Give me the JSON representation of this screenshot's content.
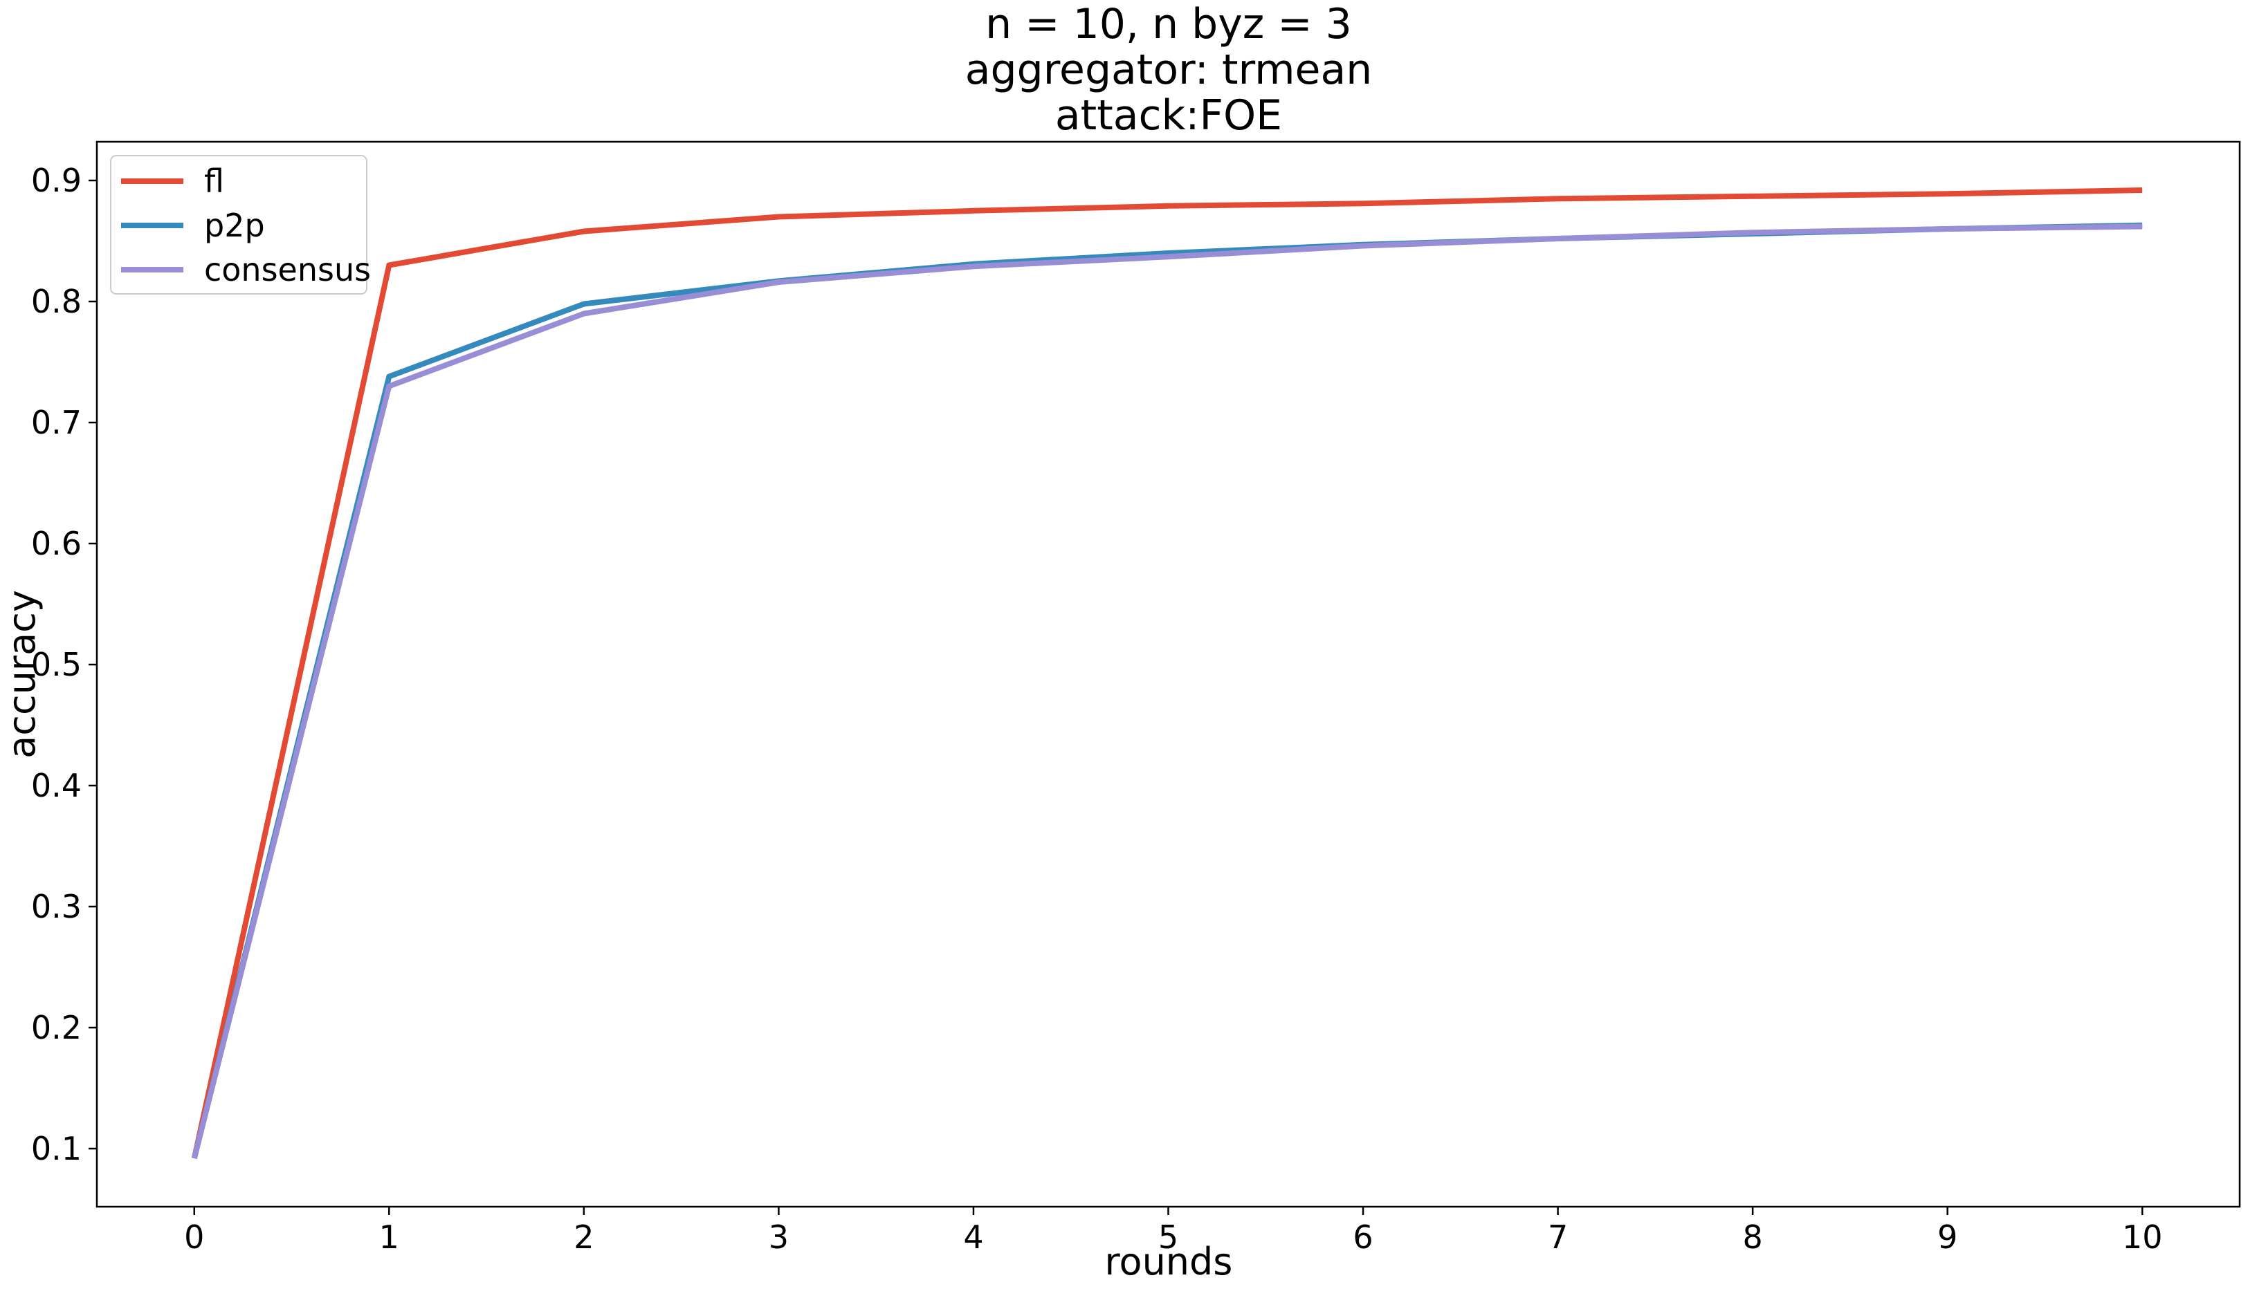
{
  "chart_data": {
    "type": "line",
    "title_lines": [
      "n = 10, n byz = 3",
      "aggregator: trmean",
      "attack:FOE"
    ],
    "xlabel": "rounds",
    "ylabel": "accuracy",
    "x": [
      0,
      1,
      2,
      3,
      4,
      5,
      6,
      7,
      8,
      9,
      10
    ],
    "xticks": [
      "0",
      "1",
      "2",
      "3",
      "4",
      "5",
      "6",
      "7",
      "8",
      "9",
      "10"
    ],
    "yticks": [
      "0.1",
      "0.2",
      "0.3",
      "0.4",
      "0.5",
      "0.6",
      "0.7",
      "0.8",
      "0.9"
    ],
    "xlim": [
      -0.5,
      10.5
    ],
    "ylim": [
      0.052,
      0.932
    ],
    "grid": false,
    "legend_position": "top-left",
    "series": [
      {
        "name": "fl",
        "color": "#e24a33",
        "values": [
          0.092,
          0.83,
          0.858,
          0.87,
          0.875,
          0.879,
          0.881,
          0.885,
          0.887,
          0.889,
          0.892
        ]
      },
      {
        "name": "p2p",
        "color": "#348abd",
        "values": [
          0.092,
          0.738,
          0.798,
          0.817,
          0.831,
          0.84,
          0.847,
          0.852,
          0.856,
          0.86,
          0.863
        ]
      },
      {
        "name": "consensus",
        "color": "#988ed5",
        "values": [
          0.092,
          0.73,
          0.79,
          0.816,
          0.829,
          0.837,
          0.846,
          0.852,
          0.857,
          0.86,
          0.862
        ]
      }
    ]
  }
}
